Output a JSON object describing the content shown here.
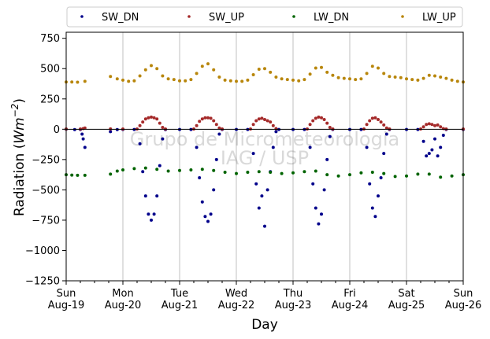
{
  "chart_data": {
    "type": "scatter",
    "title": "",
    "xlabel": "Day",
    "ylabel": "Radiation (Wm⁻²)",
    "ylabel_main": "Radiation (",
    "ylabel_unit": "Wm",
    "ylabel_exp": "−2",
    "ylabel_close": ")",
    "xlim": [
      0,
      7
    ],
    "ylim": [
      -1250,
      800
    ],
    "yticks": [
      -1250,
      -1000,
      -750,
      -500,
      -250,
      0,
      250,
      500,
      750
    ],
    "ytick_labels": [
      "−1250",
      "−1000",
      "−750",
      "−500",
      "−250",
      "0",
      "250",
      "500",
      "750"
    ],
    "xticks": [
      {
        "value": 0,
        "day": "Sun",
        "date": "Aug-19"
      },
      {
        "value": 1,
        "day": "Mon",
        "date": "Aug-20"
      },
      {
        "value": 2,
        "day": "Tue",
        "date": "Aug-21"
      },
      {
        "value": 3,
        "day": "Wed",
        "date": "Aug-22"
      },
      {
        "value": 4,
        "day": "Thu",
        "date": "Aug-23"
      },
      {
        "value": 5,
        "day": "Fri",
        "date": "Aug-24"
      },
      {
        "value": 6,
        "day": "Sat",
        "date": "Aug-25"
      },
      {
        "value": 7,
        "day": "Sun",
        "date": "Aug-26"
      }
    ],
    "grid": "vertical",
    "legend_position": "top",
    "watermark": [
      "Grupo de Micrometeorologia",
      "IAG / USP"
    ],
    "series": [
      {
        "name": "SW_DN",
        "color": "#00008b",
        "points": [
          [
            0.0,
            0
          ],
          [
            0.15,
            -3
          ],
          [
            0.25,
            -2
          ],
          [
            0.28,
            -40
          ],
          [
            0.3,
            -80
          ],
          [
            0.33,
            -150
          ],
          [
            0.78,
            -20
          ],
          [
            0.9,
            -3
          ],
          [
            1.0,
            -2
          ],
          [
            1.2,
            -2
          ],
          [
            1.3,
            -120
          ],
          [
            1.35,
            -350
          ],
          [
            1.4,
            -550
          ],
          [
            1.45,
            -700
          ],
          [
            1.5,
            -750
          ],
          [
            1.55,
            -700
          ],
          [
            1.6,
            -550
          ],
          [
            1.65,
            -300
          ],
          [
            1.7,
            -80
          ],
          [
            1.75,
            -3
          ],
          [
            2.0,
            -2
          ],
          [
            2.2,
            -2
          ],
          [
            2.3,
            -150
          ],
          [
            2.35,
            -400
          ],
          [
            2.4,
            -600
          ],
          [
            2.45,
            -720
          ],
          [
            2.5,
            -760
          ],
          [
            2.55,
            -700
          ],
          [
            2.6,
            -500
          ],
          [
            2.65,
            -250
          ],
          [
            2.7,
            -40
          ],
          [
            2.75,
            -2
          ],
          [
            3.0,
            -2
          ],
          [
            3.2,
            -2
          ],
          [
            3.3,
            -200
          ],
          [
            3.35,
            -450
          ],
          [
            3.4,
            -650
          ],
          [
            3.45,
            -550
          ],
          [
            3.5,
            -800
          ],
          [
            3.55,
            -500
          ],
          [
            3.6,
            -350
          ],
          [
            3.65,
            -150
          ],
          [
            3.7,
            -20
          ],
          [
            3.75,
            -2
          ],
          [
            4.0,
            -2
          ],
          [
            4.2,
            -2
          ],
          [
            4.3,
            -150
          ],
          [
            4.35,
            -450
          ],
          [
            4.4,
            -650
          ],
          [
            4.45,
            -780
          ],
          [
            4.5,
            -700
          ],
          [
            4.55,
            -500
          ],
          [
            4.6,
            -250
          ],
          [
            4.65,
            -60
          ],
          [
            4.7,
            -2
          ],
          [
            5.0,
            -2
          ],
          [
            5.2,
            -2
          ],
          [
            5.3,
            -150
          ],
          [
            5.35,
            -450
          ],
          [
            5.4,
            -650
          ],
          [
            5.45,
            -720
          ],
          [
            5.5,
            -550
          ],
          [
            5.55,
            -400
          ],
          [
            5.6,
            -200
          ],
          [
            5.65,
            -40
          ],
          [
            5.7,
            -2
          ],
          [
            6.0,
            -2
          ],
          [
            6.2,
            -2
          ],
          [
            6.3,
            -100
          ],
          [
            6.35,
            -220
          ],
          [
            6.4,
            -200
          ],
          [
            6.45,
            -170
          ],
          [
            6.5,
            -80
          ],
          [
            6.55,
            -220
          ],
          [
            6.6,
            -150
          ],
          [
            6.65,
            -50
          ],
          [
            6.7,
            -2
          ],
          [
            7.0,
            -2
          ]
        ]
      },
      {
        "name": "SW_UP",
        "color": "#a52a2a",
        "points": [
          [
            0.0,
            2
          ],
          [
            0.25,
            2
          ],
          [
            0.3,
            5
          ],
          [
            0.33,
            10
          ],
          [
            0.78,
            3
          ],
          [
            1.0,
            2
          ],
          [
            1.25,
            2
          ],
          [
            1.3,
            30
          ],
          [
            1.35,
            60
          ],
          [
            1.4,
            85
          ],
          [
            1.45,
            95
          ],
          [
            1.5,
            100
          ],
          [
            1.55,
            95
          ],
          [
            1.6,
            85
          ],
          [
            1.65,
            50
          ],
          [
            1.7,
            15
          ],
          [
            1.75,
            2
          ],
          [
            2.25,
            2
          ],
          [
            2.3,
            30
          ],
          [
            2.35,
            65
          ],
          [
            2.4,
            85
          ],
          [
            2.45,
            95
          ],
          [
            2.5,
            95
          ],
          [
            2.55,
            90
          ],
          [
            2.6,
            70
          ],
          [
            2.65,
            40
          ],
          [
            2.7,
            10
          ],
          [
            2.75,
            2
          ],
          [
            3.25,
            2
          ],
          [
            3.3,
            40
          ],
          [
            3.35,
            70
          ],
          [
            3.4,
            85
          ],
          [
            3.45,
            90
          ],
          [
            3.5,
            80
          ],
          [
            3.55,
            70
          ],
          [
            3.6,
            60
          ],
          [
            3.65,
            30
          ],
          [
            3.7,
            5
          ],
          [
            4.25,
            2
          ],
          [
            4.3,
            40
          ],
          [
            4.35,
            70
          ],
          [
            4.4,
            90
          ],
          [
            4.45,
            100
          ],
          [
            4.5,
            95
          ],
          [
            4.55,
            80
          ],
          [
            4.6,
            50
          ],
          [
            4.65,
            15
          ],
          [
            4.7,
            2
          ],
          [
            5.25,
            2
          ],
          [
            5.3,
            40
          ],
          [
            5.35,
            70
          ],
          [
            5.4,
            90
          ],
          [
            5.45,
            95
          ],
          [
            5.5,
            80
          ],
          [
            5.55,
            60
          ],
          [
            5.6,
            35
          ],
          [
            5.65,
            10
          ],
          [
            5.7,
            2
          ],
          [
            6.25,
            2
          ],
          [
            6.3,
            20
          ],
          [
            6.35,
            40
          ],
          [
            6.4,
            45
          ],
          [
            6.45,
            40
          ],
          [
            6.5,
            30
          ],
          [
            6.55,
            35
          ],
          [
            6.6,
            20
          ],
          [
            6.65,
            5
          ],
          [
            6.7,
            2
          ],
          [
            7.0,
            2
          ]
        ]
      },
      {
        "name": "LW_DN",
        "color": "#006400",
        "points": [
          [
            0.0,
            -375
          ],
          [
            0.1,
            -378
          ],
          [
            0.2,
            -380
          ],
          [
            0.33,
            -380
          ],
          [
            0.78,
            -370
          ],
          [
            0.9,
            -345
          ],
          [
            1.0,
            -335
          ],
          [
            1.2,
            -325
          ],
          [
            1.4,
            -320
          ],
          [
            1.6,
            -330
          ],
          [
            1.8,
            -345
          ],
          [
            2.0,
            -340
          ],
          [
            2.2,
            -335
          ],
          [
            2.4,
            -330
          ],
          [
            2.6,
            -340
          ],
          [
            2.8,
            -355
          ],
          [
            3.0,
            -365
          ],
          [
            3.2,
            -355
          ],
          [
            3.4,
            -350
          ],
          [
            3.6,
            -355
          ],
          [
            3.8,
            -365
          ],
          [
            4.0,
            -360
          ],
          [
            4.2,
            -350
          ],
          [
            4.4,
            -345
          ],
          [
            4.6,
            -375
          ],
          [
            4.8,
            -385
          ],
          [
            5.0,
            -375
          ],
          [
            5.2,
            -360
          ],
          [
            5.4,
            -355
          ],
          [
            5.6,
            -365
          ],
          [
            5.8,
            -390
          ],
          [
            6.0,
            -385
          ],
          [
            6.2,
            -370
          ],
          [
            6.4,
            -370
          ],
          [
            6.6,
            -395
          ],
          [
            6.8,
            -385
          ],
          [
            7.0,
            -375
          ]
        ]
      },
      {
        "name": "LW_UP",
        "color": "#b8860b",
        "points": [
          [
            0.0,
            390
          ],
          [
            0.1,
            390
          ],
          [
            0.2,
            388
          ],
          [
            0.33,
            395
          ],
          [
            0.78,
            435
          ],
          [
            0.9,
            415
          ],
          [
            1.0,
            405
          ],
          [
            1.1,
            395
          ],
          [
            1.2,
            400
          ],
          [
            1.3,
            440
          ],
          [
            1.4,
            490
          ],
          [
            1.5,
            525
          ],
          [
            1.6,
            500
          ],
          [
            1.7,
            440
          ],
          [
            1.8,
            415
          ],
          [
            1.9,
            410
          ],
          [
            2.0,
            400
          ],
          [
            2.1,
            400
          ],
          [
            2.2,
            410
          ],
          [
            2.3,
            460
          ],
          [
            2.4,
            520
          ],
          [
            2.5,
            540
          ],
          [
            2.6,
            490
          ],
          [
            2.7,
            430
          ],
          [
            2.8,
            405
          ],
          [
            2.9,
            400
          ],
          [
            3.0,
            395
          ],
          [
            3.1,
            395
          ],
          [
            3.2,
            405
          ],
          [
            3.3,
            450
          ],
          [
            3.4,
            495
          ],
          [
            3.5,
            500
          ],
          [
            3.6,
            470
          ],
          [
            3.7,
            430
          ],
          [
            3.8,
            415
          ],
          [
            3.9,
            410
          ],
          [
            4.0,
            405
          ],
          [
            4.1,
            400
          ],
          [
            4.2,
            410
          ],
          [
            4.3,
            455
          ],
          [
            4.4,
            505
          ],
          [
            4.5,
            510
          ],
          [
            4.6,
            470
          ],
          [
            4.7,
            445
          ],
          [
            4.8,
            425
          ],
          [
            4.9,
            420
          ],
          [
            5.0,
            415
          ],
          [
            5.1,
            410
          ],
          [
            5.2,
            415
          ],
          [
            5.3,
            460
          ],
          [
            5.4,
            520
          ],
          [
            5.5,
            505
          ],
          [
            5.6,
            460
          ],
          [
            5.7,
            435
          ],
          [
            5.8,
            430
          ],
          [
            5.9,
            425
          ],
          [
            6.0,
            415
          ],
          [
            6.1,
            410
          ],
          [
            6.2,
            405
          ],
          [
            6.3,
            420
          ],
          [
            6.4,
            445
          ],
          [
            6.5,
            440
          ],
          [
            6.6,
            430
          ],
          [
            6.7,
            420
          ],
          [
            6.8,
            405
          ],
          [
            6.9,
            395
          ],
          [
            7.0,
            390
          ]
        ]
      }
    ]
  }
}
